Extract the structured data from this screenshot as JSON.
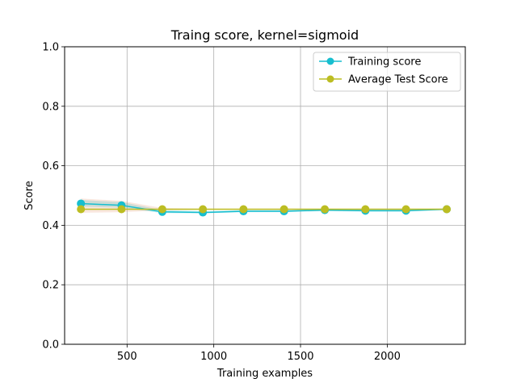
{
  "chart_data": {
    "type": "line",
    "title": "Traing score, kernel=sigmoid",
    "xlabel": "Training examples",
    "ylabel": "Score",
    "xlim": [
      140,
      2450
    ],
    "ylim": [
      0.0,
      1.0
    ],
    "xticks": [
      500,
      1000,
      1500,
      2000
    ],
    "yticks": [
      0.0,
      0.2,
      0.4,
      0.6,
      0.8,
      1.0
    ],
    "xtick_labels": [
      "500",
      "1000",
      "1500",
      "2000"
    ],
    "ytick_labels": [
      "0.0",
      "0.2",
      "0.4",
      "0.6",
      "0.8",
      "1.0"
    ],
    "grid": true,
    "legend_position": "top-right",
    "x": [
      234,
      468,
      703,
      937,
      1171,
      1405,
      1640,
      1874,
      2108,
      2343
    ],
    "series": [
      {
        "name": "Training score",
        "color": "#17becf",
        "values": [
          0.473,
          0.467,
          0.445,
          0.443,
          0.447,
          0.447,
          0.451,
          0.449,
          0.449,
          0.454
        ],
        "band_low": [
          0.463,
          0.459,
          0.441,
          0.44,
          0.444,
          0.444,
          0.448,
          0.446,
          0.446,
          0.451
        ],
        "band_high": [
          0.485,
          0.478,
          0.451,
          0.447,
          0.451,
          0.451,
          0.455,
          0.453,
          0.453,
          0.457
        ],
        "band_color": "#17becf"
      },
      {
        "name": "Average Test Score",
        "color": "#bcbd22",
        "values": [
          0.454,
          0.454,
          0.454,
          0.454,
          0.454,
          0.454,
          0.454,
          0.454,
          0.454,
          0.454
        ],
        "band_low": [
          0.442,
          0.444,
          0.45,
          0.452,
          0.452,
          0.452,
          0.452,
          0.452,
          0.452,
          0.452
        ],
        "band_high": [
          0.49,
          0.482,
          0.458,
          0.456,
          0.456,
          0.456,
          0.456,
          0.456,
          0.456,
          0.456
        ],
        "band_color": "#e8a07a"
      }
    ]
  }
}
